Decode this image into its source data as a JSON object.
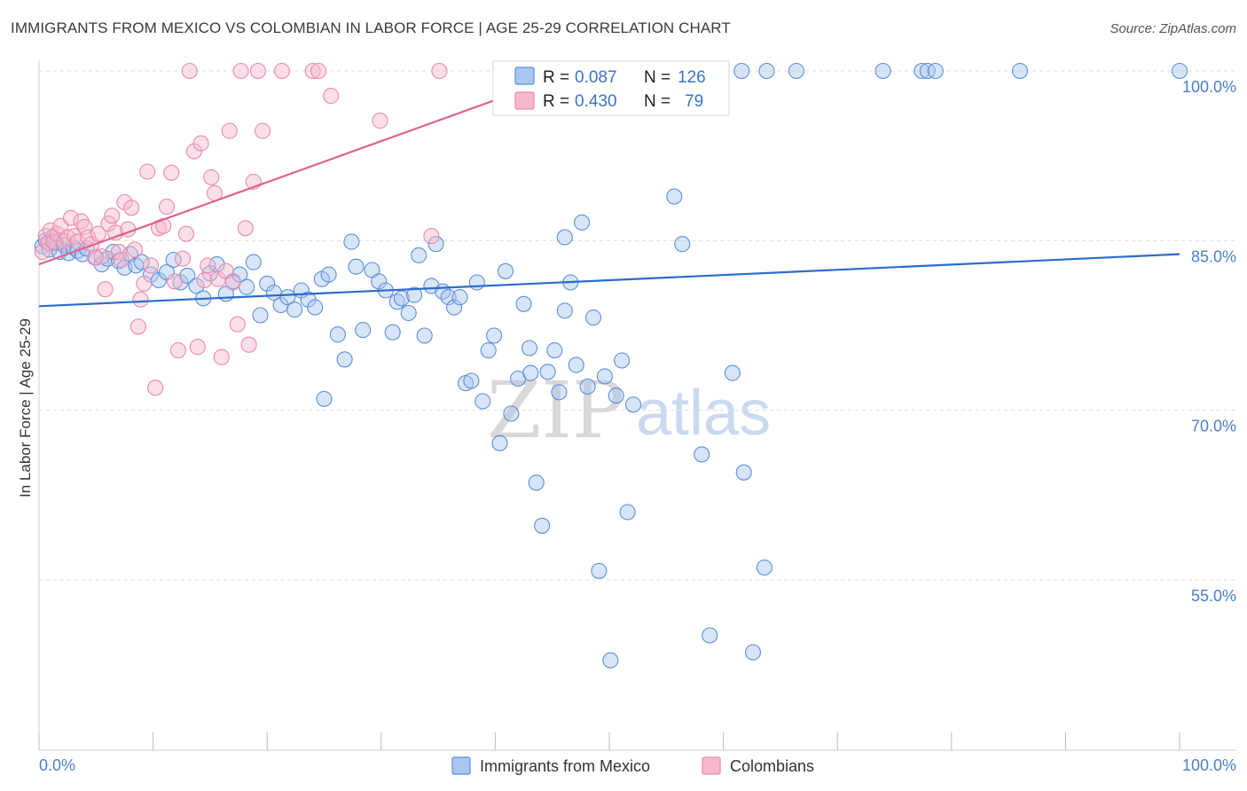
{
  "header": {
    "title": "IMMIGRANTS FROM MEXICO VS COLOMBIAN IN LABOR FORCE | AGE 25-29 CORRELATION CHART",
    "source": "Source: ZipAtlas.com"
  },
  "watermark": {
    "zip": "ZIP",
    "atlas": "atlas"
  },
  "colors": {
    "mexico_fill": "#a9c6f0",
    "mexico_stroke": "#5b8fd6",
    "mexico_line": "#2b6ccc",
    "colombia_fill": "#f6b8cc",
    "colombia_stroke": "#e98aaa",
    "colombia_line": "#e0608c",
    "tick": "#4a7fc9",
    "grid": "#dddddd"
  },
  "legend": {
    "r_label": "R =",
    "n_label": "N =",
    "rows": [
      {
        "r": "0.087",
        "n": "126"
      },
      {
        "r": "0.430",
        "n": "79"
      }
    ]
  },
  "chart_data": {
    "type": "scatter",
    "title": "IMMIGRANTS FROM MEXICO VS COLOMBIAN IN LABOR FORCE | AGE 25-29 CORRELATION CHART",
    "xlabel": "",
    "ylabel": "In Labor Force | Age 25-29",
    "xlim": [
      0,
      100
    ],
    "ylim": [
      40,
      102
    ],
    "x_tick_labels": [
      "0.0%",
      "100.0%"
    ],
    "y_ticks": [
      100,
      85,
      70,
      55
    ],
    "y_tick_labels": [
      "100.0%",
      "85.0%",
      "70.0%",
      "55.0%"
    ],
    "grid": "horizontal dashed",
    "legend_position": "top-center",
    "series": [
      {
        "name": "Immigrants from Mexico",
        "r": 0.087,
        "n": 126,
        "trend": {
          "x": [
            0,
            100
          ],
          "y": [
            79.2,
            83.8
          ]
        },
        "points": [
          [
            0.3,
            84.5
          ],
          [
            0.6,
            85.0
          ],
          [
            0.9,
            84.2
          ],
          [
            1.2,
            85.3
          ],
          [
            1.5,
            84.8
          ],
          [
            1.8,
            84.0
          ],
          [
            2.2,
            84.6
          ],
          [
            2.6,
            83.9
          ],
          [
            3.0,
            84.4
          ],
          [
            3.4,
            84.1
          ],
          [
            3.8,
            83.8
          ],
          [
            4.2,
            84.3
          ],
          [
            5.0,
            83.5
          ],
          [
            5.5,
            82.9
          ],
          [
            6.0,
            83.4
          ],
          [
            6.5,
            84.0
          ],
          [
            7.0,
            83.2
          ],
          [
            7.5,
            82.6
          ],
          [
            8.0,
            83.8
          ],
          [
            8.5,
            82.8
          ],
          [
            9.0,
            83.1
          ],
          [
            9.8,
            82.0
          ],
          [
            10.5,
            81.5
          ],
          [
            11.2,
            82.2
          ],
          [
            11.8,
            83.3
          ],
          [
            12.4,
            81.3
          ],
          [
            13.0,
            81.9
          ],
          [
            13.8,
            81.0
          ],
          [
            14.4,
            79.9
          ],
          [
            15.0,
            82.1
          ],
          [
            15.6,
            82.9
          ],
          [
            16.4,
            80.3
          ],
          [
            17.0,
            81.4
          ],
          [
            17.6,
            82.0
          ],
          [
            18.2,
            80.9
          ],
          [
            18.8,
            83.1
          ],
          [
            19.4,
            78.4
          ],
          [
            20.0,
            81.2
          ],
          [
            20.6,
            80.4
          ],
          [
            21.2,
            79.3
          ],
          [
            21.8,
            80.0
          ],
          [
            22.4,
            78.9
          ],
          [
            23.0,
            80.6
          ],
          [
            23.6,
            79.8
          ],
          [
            24.2,
            79.1
          ],
          [
            24.8,
            81.6
          ],
          [
            25.4,
            82.0
          ],
          [
            25.0,
            71.0
          ],
          [
            26.2,
            76.7
          ],
          [
            26.8,
            74.5
          ],
          [
            27.4,
            84.9
          ],
          [
            27.8,
            82.7
          ],
          [
            28.4,
            77.1
          ],
          [
            29.2,
            82.4
          ],
          [
            29.8,
            81.4
          ],
          [
            30.4,
            80.6
          ],
          [
            31.0,
            76.9
          ],
          [
            31.4,
            79.6
          ],
          [
            31.8,
            79.9
          ],
          [
            32.4,
            78.6
          ],
          [
            32.9,
            80.2
          ],
          [
            33.3,
            83.7
          ],
          [
            33.8,
            76.6
          ],
          [
            34.4,
            81.0
          ],
          [
            34.8,
            84.7
          ],
          [
            35.4,
            80.5
          ],
          [
            35.9,
            80.0
          ],
          [
            36.4,
            79.1
          ],
          [
            36.9,
            80.0
          ],
          [
            37.4,
            72.4
          ],
          [
            37.9,
            72.6
          ],
          [
            38.4,
            81.3
          ],
          [
            38.9,
            70.8
          ],
          [
            39.4,
            75.3
          ],
          [
            39.9,
            76.6
          ],
          [
            40.4,
            67.1
          ],
          [
            40.9,
            82.3
          ],
          [
            41.4,
            69.7
          ],
          [
            42.0,
            72.8
          ],
          [
            42.5,
            79.4
          ],
          [
            43.1,
            73.3
          ],
          [
            43.6,
            63.6
          ],
          [
            43.0,
            75.5
          ],
          [
            44.1,
            59.8
          ],
          [
            44.6,
            73.4
          ],
          [
            45.2,
            75.3
          ],
          [
            45.6,
            71.6
          ],
          [
            46.1,
            78.8
          ],
          [
            46.6,
            81.3
          ],
          [
            46.1,
            85.3
          ],
          [
            47.1,
            74.0
          ],
          [
            47.6,
            86.6
          ],
          [
            48.1,
            72.1
          ],
          [
            48.6,
            78.2
          ],
          [
            49.1,
            55.8
          ],
          [
            49.6,
            73.0
          ],
          [
            50.1,
            47.9
          ],
          [
            50.6,
            71.3
          ],
          [
            51.1,
            74.4
          ],
          [
            51.6,
            61.0
          ],
          [
            52.1,
            70.5
          ],
          [
            53.5,
            100
          ],
          [
            55.0,
            100
          ],
          [
            56.5,
            100
          ],
          [
            58.0,
            100
          ],
          [
            55.7,
            88.9
          ],
          [
            56.4,
            84.7
          ],
          [
            58.1,
            66.1
          ],
          [
            58.8,
            50.1
          ],
          [
            60.8,
            73.3
          ],
          [
            61.6,
            100
          ],
          [
            63.8,
            100
          ],
          [
            61.8,
            64.5
          ],
          [
            62.6,
            48.6
          ],
          [
            63.6,
            56.1
          ],
          [
            66.4,
            100
          ],
          [
            74.0,
            100
          ],
          [
            77.4,
            100
          ],
          [
            77.9,
            100
          ],
          [
            78.6,
            100
          ],
          [
            86.0,
            100
          ],
          [
            100,
            100
          ]
        ]
      },
      {
        "name": "Colombians",
        "r": 0.43,
        "n": 79,
        "trend": {
          "x": [
            0,
            40.2
          ],
          "y": [
            82.9,
            97.5
          ]
        },
        "points": [
          [
            0.3,
            84.0
          ],
          [
            0.6,
            85.4
          ],
          [
            0.8,
            84.8
          ],
          [
            1.0,
            85.9
          ],
          [
            1.3,
            84.9
          ],
          [
            1.6,
            85.6
          ],
          [
            1.9,
            86.3
          ],
          [
            2.2,
            84.9
          ],
          [
            2.5,
            85.3
          ],
          [
            2.8,
            87.0
          ],
          [
            3.1,
            85.4
          ],
          [
            3.4,
            84.9
          ],
          [
            3.7,
            86.7
          ],
          [
            4.0,
            86.2
          ],
          [
            4.3,
            85.3
          ],
          [
            4.6,
            84.7
          ],
          [
            4.9,
            83.5
          ],
          [
            5.2,
            85.6
          ],
          [
            5.5,
            83.6
          ],
          [
            5.8,
            80.7
          ],
          [
            6.1,
            86.5
          ],
          [
            6.4,
            87.2
          ],
          [
            6.7,
            85.7
          ],
          [
            7.0,
            84.0
          ],
          [
            7.2,
            83.3
          ],
          [
            7.5,
            88.4
          ],
          [
            7.8,
            86.0
          ],
          [
            8.1,
            87.9
          ],
          [
            8.4,
            84.2
          ],
          [
            8.7,
            77.4
          ],
          [
            8.9,
            79.8
          ],
          [
            9.2,
            81.2
          ],
          [
            9.5,
            91.1
          ],
          [
            9.8,
            82.8
          ],
          [
            10.2,
            72.0
          ],
          [
            10.5,
            86.1
          ],
          [
            10.9,
            86.3
          ],
          [
            11.2,
            88.0
          ],
          [
            11.6,
            91.0
          ],
          [
            11.9,
            81.4
          ],
          [
            12.2,
            75.3
          ],
          [
            12.6,
            83.4
          ],
          [
            12.9,
            85.6
          ],
          [
            13.2,
            100
          ],
          [
            13.6,
            92.9
          ],
          [
            13.9,
            75.6
          ],
          [
            14.2,
            93.6
          ],
          [
            14.5,
            81.5
          ],
          [
            14.8,
            82.8
          ],
          [
            15.1,
            90.6
          ],
          [
            15.4,
            89.2
          ],
          [
            15.7,
            81.6
          ],
          [
            16.0,
            74.7
          ],
          [
            16.4,
            82.3
          ],
          [
            16.7,
            94.7
          ],
          [
            17.0,
            81.3
          ],
          [
            17.4,
            77.6
          ],
          [
            17.7,
            100
          ],
          [
            18.1,
            86.1
          ],
          [
            18.4,
            75.8
          ],
          [
            18.8,
            90.2
          ],
          [
            19.2,
            100
          ],
          [
            19.6,
            94.7
          ],
          [
            21.3,
            100
          ],
          [
            24.0,
            100
          ],
          [
            24.5,
            100
          ],
          [
            25.6,
            97.8
          ],
          [
            29.9,
            95.6
          ],
          [
            35.1,
            100
          ],
          [
            34.4,
            85.4
          ]
        ]
      }
    ]
  },
  "bottom_legend": {
    "items": [
      {
        "label": "Immigrants from Mexico"
      },
      {
        "label": "Colombians"
      }
    ]
  }
}
